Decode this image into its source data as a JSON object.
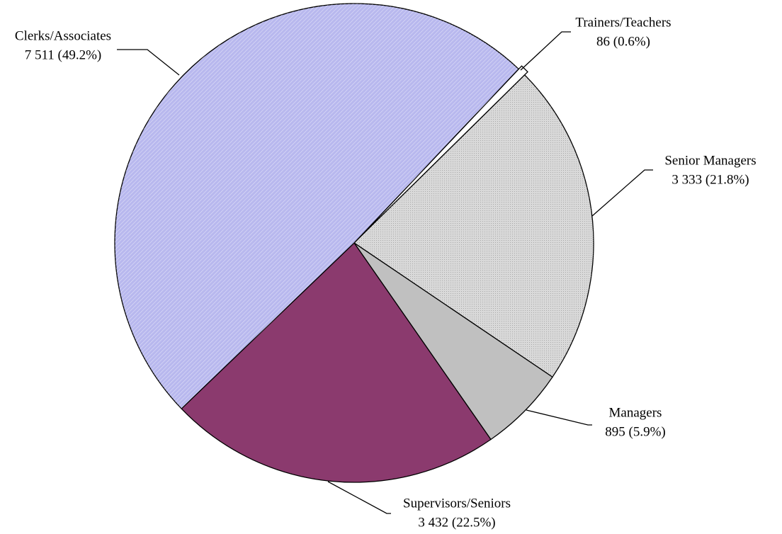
{
  "chart_data": {
    "type": "pie",
    "categories": [
      "Trainers/Teachers",
      "Senior Managers",
      "Managers",
      "Supervisors/Seniors",
      "Clerks/Associates"
    ],
    "values": [
      86,
      3333,
      895,
      3432,
      7511
    ],
    "value_labels": [
      "86 (0.6%)",
      "3 333 (21.8%)",
      "895 (5.9%)",
      "3 432 (22.5%)",
      "7 511 (49.2%)"
    ],
    "colors": [
      "#ffffff",
      "#d9d9d9",
      "#c0c0c0",
      "#8b3a6e",
      "#b8b8ee"
    ]
  }
}
